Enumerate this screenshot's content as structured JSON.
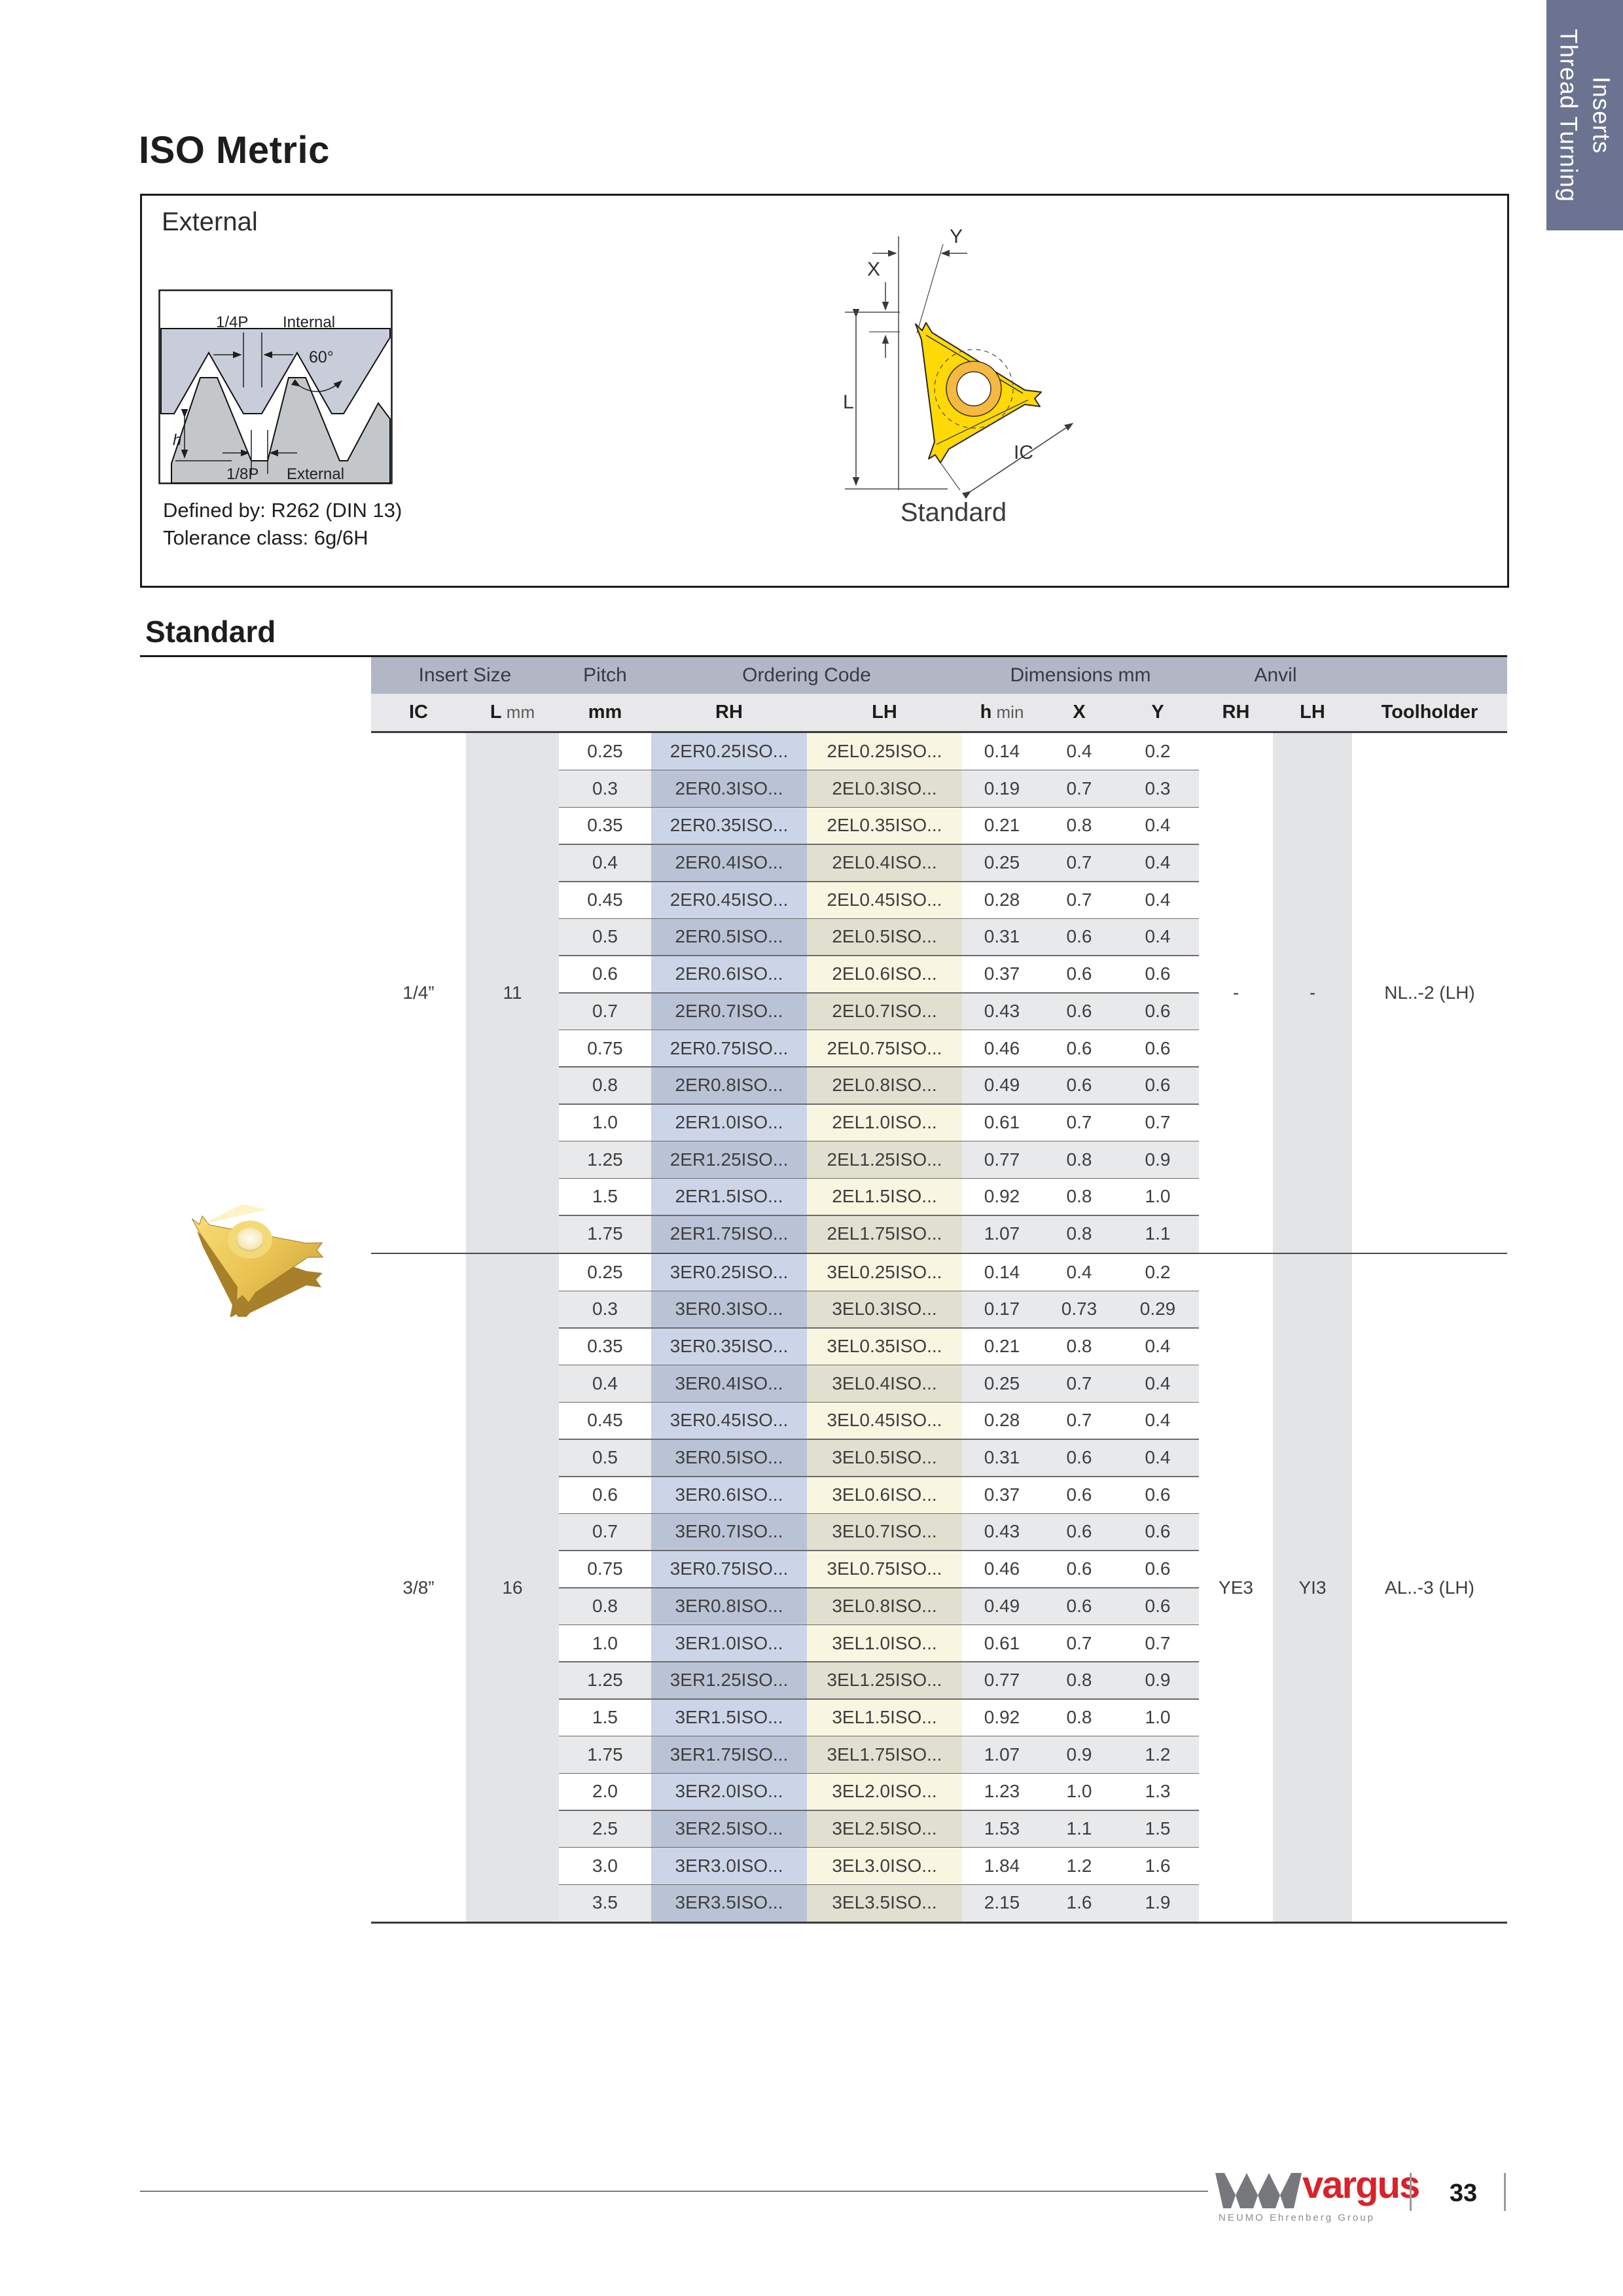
{
  "page": {
    "title": "ISO Metric",
    "tab": "Thread Turning\nInserts",
    "section_title": "Standard"
  },
  "external_box": {
    "label": "External",
    "defined_by": "Defined by: R262 (DIN 13)\nTolerance class: 6g/6H",
    "profile_labels": {
      "quarter_pitch": "1/4P",
      "internal": "Internal",
      "angle": "60°",
      "height": "h",
      "eighth_pitch": "1/8P",
      "external": "External"
    },
    "dimension_labels": {
      "x": "X",
      "y": "Y",
      "l": "L",
      "ic": "IC"
    },
    "caption": "Standard"
  },
  "table": {
    "group_headers": [
      "Insert Size",
      "Pitch",
      "Ordering Code",
      "Dimensions mm",
      "Anvil",
      ""
    ],
    "col_headers": [
      {
        "b": "IC",
        "s": ""
      },
      {
        "b": "L",
        "s": " mm"
      },
      {
        "b": "mm",
        "s": ""
      },
      {
        "b": "RH",
        "s": ""
      },
      {
        "b": "LH",
        "s": ""
      },
      {
        "b": "h",
        "s": " min"
      },
      {
        "b": "X",
        "s": ""
      },
      {
        "b": "Y",
        "s": ""
      },
      {
        "b": "RH",
        "s": ""
      },
      {
        "b": "LH",
        "s": ""
      },
      {
        "b": "Toolholder",
        "s": ""
      }
    ],
    "groups": [
      {
        "ic": "1/4”",
        "l": "11",
        "anvil_rh": "-",
        "anvil_lh": "-",
        "toolholder": "NL..-2 (LH)",
        "rows": [
          [
            "0.25",
            "2ER0.25ISO...",
            "2EL0.25ISO...",
            "0.14",
            "0.4",
            "0.2"
          ],
          [
            "0.3",
            "2ER0.3ISO...",
            "2EL0.3ISO...",
            "0.19",
            "0.7",
            "0.3"
          ],
          [
            "0.35",
            "2ER0.35ISO...",
            "2EL0.35ISO...",
            "0.21",
            "0.8",
            "0.4"
          ],
          [
            "0.4",
            "2ER0.4ISO...",
            "2EL0.4ISO...",
            "0.25",
            "0.7",
            "0.4"
          ],
          [
            "0.45",
            "2ER0.45ISO...",
            "2EL0.45ISO...",
            "0.28",
            "0.7",
            "0.4"
          ],
          [
            "0.5",
            "2ER0.5ISO...",
            "2EL0.5ISO...",
            "0.31",
            "0.6",
            "0.4"
          ],
          [
            "0.6",
            "2ER0.6ISO...",
            "2EL0.6ISO...",
            "0.37",
            "0.6",
            "0.6"
          ],
          [
            "0.7",
            "2ER0.7ISO...",
            "2EL0.7ISO...",
            "0.43",
            "0.6",
            "0.6"
          ],
          [
            "0.75",
            "2ER0.75ISO...",
            "2EL0.75ISO...",
            "0.46",
            "0.6",
            "0.6"
          ],
          [
            "0.8",
            "2ER0.8ISO...",
            "2EL0.8ISO...",
            "0.49",
            "0.6",
            "0.6"
          ],
          [
            "1.0",
            "2ER1.0ISO...",
            "2EL1.0ISO...",
            "0.61",
            "0.7",
            "0.7"
          ],
          [
            "1.25",
            "2ER1.25ISO...",
            "2EL1.25ISO...",
            "0.77",
            "0.8",
            "0.9"
          ],
          [
            "1.5",
            "2ER1.5ISO...",
            "2EL1.5ISO...",
            "0.92",
            "0.8",
            "1.0"
          ],
          [
            "1.75",
            "2ER1.75ISO...",
            "2EL1.75ISO...",
            "1.07",
            "0.8",
            "1.1"
          ]
        ]
      },
      {
        "ic": "3/8”",
        "l": "16",
        "anvil_rh": "YE3",
        "anvil_lh": "YI3",
        "toolholder": "AL..-3 (LH)",
        "rows": [
          [
            "0.25",
            "3ER0.25ISO...",
            "3EL0.25ISO...",
            "0.14",
            "0.4",
            "0.2"
          ],
          [
            "0.3",
            "3ER0.3ISO...",
            "3EL0.3ISO...",
            "0.17",
            "0.73",
            "0.29"
          ],
          [
            "0.35",
            "3ER0.35ISO...",
            "3EL0.35ISO...",
            "0.21",
            "0.8",
            "0.4"
          ],
          [
            "0.4",
            "3ER0.4ISO...",
            "3EL0.4ISO...",
            "0.25",
            "0.7",
            "0.4"
          ],
          [
            "0.45",
            "3ER0.45ISO...",
            "3EL0.45ISO...",
            "0.28",
            "0.7",
            "0.4"
          ],
          [
            "0.5",
            "3ER0.5ISO...",
            "3EL0.5ISO...",
            "0.31",
            "0.6",
            "0.4"
          ],
          [
            "0.6",
            "3ER0.6ISO...",
            "3EL0.6ISO...",
            "0.37",
            "0.6",
            "0.6"
          ],
          [
            "0.7",
            "3ER0.7ISO...",
            "3EL0.7ISO...",
            "0.43",
            "0.6",
            "0.6"
          ],
          [
            "0.75",
            "3ER0.75ISO...",
            "3EL0.75ISO...",
            "0.46",
            "0.6",
            "0.6"
          ],
          [
            "0.8",
            "3ER0.8ISO...",
            "3EL0.8ISO...",
            "0.49",
            "0.6",
            "0.6"
          ],
          [
            "1.0",
            "3ER1.0ISO...",
            "3EL1.0ISO...",
            "0.61",
            "0.7",
            "0.7"
          ],
          [
            "1.25",
            "3ER1.25ISO...",
            "3EL1.25ISO...",
            "0.77",
            "0.8",
            "0.9"
          ],
          [
            "1.5",
            "3ER1.5ISO...",
            "3EL1.5ISO...",
            "0.92",
            "0.8",
            "1.0"
          ],
          [
            "1.75",
            "3ER1.75ISO...",
            "3EL1.75ISO...",
            "1.07",
            "0.9",
            "1.2"
          ],
          [
            "2.0",
            "3ER2.0ISO...",
            "3EL2.0ISO...",
            "1.23",
            "1.0",
            "1.3"
          ],
          [
            "2.5",
            "3ER2.5ISO...",
            "3EL2.5ISO...",
            "1.53",
            "1.1",
            "1.5"
          ],
          [
            "3.0",
            "3ER3.0ISO...",
            "3EL3.0ISO...",
            "1.84",
            "1.2",
            "1.6"
          ],
          [
            "3.5",
            "3ER3.5ISO...",
            "3EL3.5ISO...",
            "2.15",
            "1.6",
            "1.9"
          ]
        ]
      }
    ]
  },
  "footer": {
    "brand": "vargus",
    "tagline": "NEUMO Ehrenberg Group",
    "page_number": "33"
  },
  "colors": {
    "tab_bg": "#6b7391",
    "header_band": "#b3b6c5",
    "subheader_band": "#e8e8ea",
    "rh_column": "#ccd5e8",
    "lh_column": "#f8f5e1",
    "gray_column": "#e3e4e6",
    "brand_red": "#d8232a",
    "insert_yellow": "#ffd905"
  }
}
